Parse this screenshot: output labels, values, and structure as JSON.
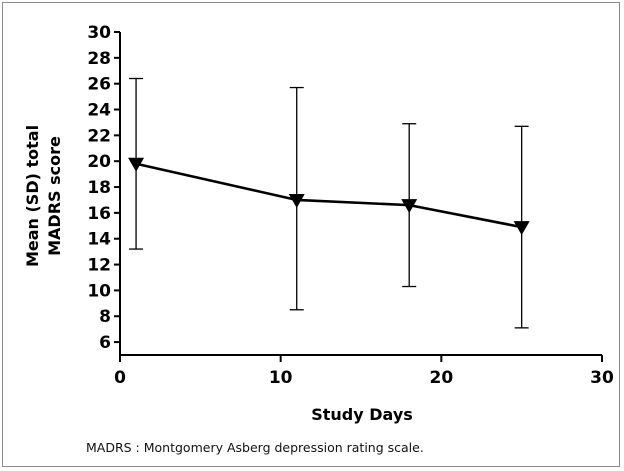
{
  "chart_data": {
    "type": "line",
    "title": "",
    "xlabel": "Study Days",
    "ylabel": "Mean (SD) total MADRS score",
    "ylabel_lines": [
      "Mean (SD) total",
      "MADRS score"
    ],
    "xlim": [
      0,
      30
    ],
    "ylim": [
      5,
      30
    ],
    "xticks": [
      0,
      10,
      20,
      30
    ],
    "yticks": [
      6,
      8,
      10,
      12,
      14,
      16,
      18,
      20,
      22,
      24,
      26,
      28,
      30
    ],
    "grid": false,
    "legend": "none",
    "marker": "down-triangle",
    "series": [
      {
        "x": [
          1,
          11,
          18,
          25
        ],
        "y": [
          19.8,
          17.0,
          16.6,
          14.9
        ],
        "error_lower": [
          13.2,
          8.5,
          10.3,
          7.1
        ],
        "error_upper": [
          26.4,
          25.7,
          22.9,
          22.7
        ]
      }
    ]
  },
  "footnote": "MADRS : Montgomery Asberg depression rating scale.",
  "colors": {
    "line": "#000000",
    "frame": "#8a8a8a"
  }
}
